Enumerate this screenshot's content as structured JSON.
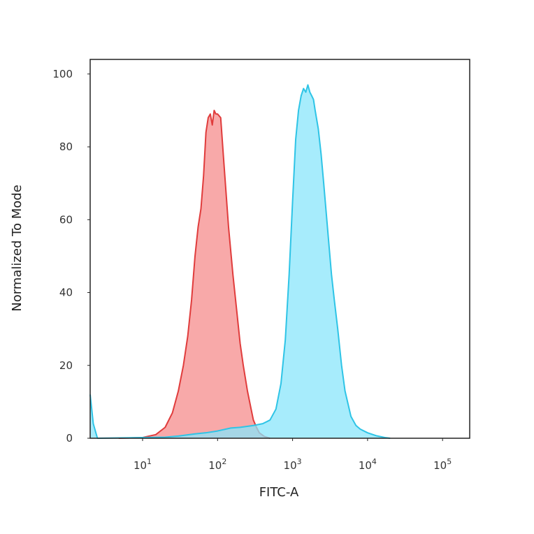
{
  "chart_data": {
    "type": "area",
    "title": "",
    "xlabel": "FITC-A",
    "ylabel": "Normalized To Mode",
    "x_scale": "log",
    "xlim": [
      2,
      230000
    ],
    "ylim": [
      0,
      104
    ],
    "x_ticks": [
      {
        "value": 10,
        "base": "10",
        "exp": "1"
      },
      {
        "value": 100,
        "base": "10",
        "exp": "2"
      },
      {
        "value": 1000,
        "base": "10",
        "exp": "3"
      },
      {
        "value": 10000,
        "base": "10",
        "exp": "4"
      },
      {
        "value": 100000,
        "base": "10",
        "exp": "5"
      }
    ],
    "y_ticks": [
      "0",
      "20",
      "40",
      "60",
      "80",
      "100"
    ],
    "grid": false,
    "legend": "none",
    "series": [
      {
        "stroke": "#e03c3c",
        "fill": "#f7a0a0",
        "points": [
          [
            4.8,
            0
          ],
          [
            10,
            0.2
          ],
          [
            15,
            1
          ],
          [
            20,
            3
          ],
          [
            25,
            7
          ],
          [
            30,
            13
          ],
          [
            35,
            20
          ],
          [
            40,
            28
          ],
          [
            45,
            38
          ],
          [
            50,
            50
          ],
          [
            55,
            58
          ],
          [
            60,
            63
          ],
          [
            65,
            72
          ],
          [
            70,
            84
          ],
          [
            75,
            88
          ],
          [
            80,
            89
          ],
          [
            85,
            86
          ],
          [
            90,
            90
          ],
          [
            95,
            89
          ],
          [
            100,
            89
          ],
          [
            110,
            88
          ],
          [
            120,
            77
          ],
          [
            140,
            58
          ],
          [
            160,
            45
          ],
          [
            180,
            35
          ],
          [
            200,
            26
          ],
          [
            220,
            20
          ],
          [
            250,
            13
          ],
          [
            280,
            8
          ],
          [
            300,
            5
          ],
          [
            330,
            3
          ],
          [
            360,
            1.5
          ],
          [
            420,
            0.5
          ],
          [
            500,
            0
          ]
        ]
      },
      {
        "stroke": "#2ec4e6",
        "fill": "#8ae6fb",
        "points": [
          [
            2,
            12
          ],
          [
            2.2,
            4
          ],
          [
            2.5,
            0
          ],
          [
            20,
            0.3
          ],
          [
            30,
            0.6
          ],
          [
            50,
            1.2
          ],
          [
            70,
            1.5
          ],
          [
            100,
            2
          ],
          [
            150,
            2.8
          ],
          [
            200,
            3
          ],
          [
            300,
            3.5
          ],
          [
            400,
            4
          ],
          [
            500,
            5
          ],
          [
            600,
            8
          ],
          [
            700,
            15
          ],
          [
            800,
            27
          ],
          [
            900,
            45
          ],
          [
            1000,
            65
          ],
          [
            1100,
            82
          ],
          [
            1200,
            90
          ],
          [
            1300,
            94
          ],
          [
            1400,
            96
          ],
          [
            1500,
            95
          ],
          [
            1600,
            97
          ],
          [
            1700,
            95
          ],
          [
            1800,
            94
          ],
          [
            1900,
            93
          ],
          [
            2000,
            90
          ],
          [
            2200,
            85
          ],
          [
            2400,
            78
          ],
          [
            2600,
            70
          ],
          [
            3000,
            55
          ],
          [
            3300,
            45
          ],
          [
            3600,
            38
          ],
          [
            4000,
            30
          ],
          [
            4500,
            20
          ],
          [
            5000,
            13
          ],
          [
            6000,
            6
          ],
          [
            7000,
            3.5
          ],
          [
            8000,
            2.5
          ],
          [
            10000,
            1.5
          ],
          [
            13000,
            0.7
          ],
          [
            17000,
            0.2
          ],
          [
            20000,
            0
          ]
        ]
      }
    ]
  }
}
